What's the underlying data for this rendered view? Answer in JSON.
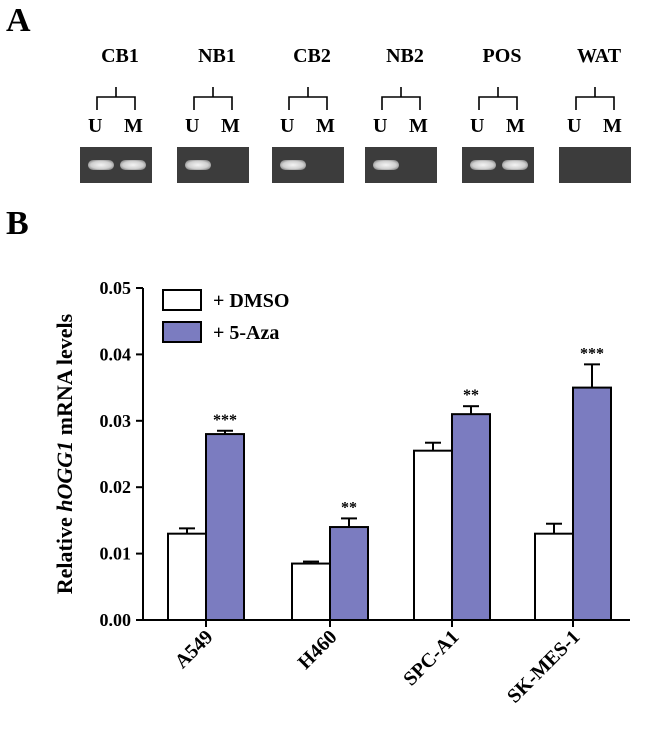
{
  "panel_a": {
    "letter": "A",
    "lane_labels": [
      "U",
      "M"
    ],
    "samples": [
      {
        "name": "CB1",
        "u_band": true,
        "m_band": true
      },
      {
        "name": "NB1",
        "u_band": true,
        "m_band": false
      },
      {
        "name": "CB2",
        "u_band": true,
        "m_band": false
      },
      {
        "name": "NB2",
        "u_band": true,
        "m_band": false
      },
      {
        "name": "POS",
        "u_band": true,
        "m_band": true
      },
      {
        "name": "WAT",
        "u_band": false,
        "m_band": false
      }
    ]
  },
  "panel_b": {
    "letter": "B"
  },
  "colors": {
    "dmso": "#ffffff",
    "aza": "#7b7cc0",
    "gel": "#3c3c3c",
    "outline": "#000000"
  },
  "chart_data": {
    "type": "bar",
    "title": "",
    "xlabel": "",
    "ylabel_prefix": "Relative ",
    "ylabel_italic": "hOGG1",
    "ylabel_suffix": " mRNA levels",
    "ylim": [
      0,
      0.05
    ],
    "yticks": [
      "0.00",
      "0.01",
      "0.02",
      "0.03",
      "0.04",
      "0.05"
    ],
    "categories": [
      "A549",
      "H460",
      "SPC-A1",
      "SK-MES-1"
    ],
    "series": [
      {
        "name": "+ DMSO",
        "values": [
          0.013,
          0.0085,
          0.0255,
          0.013
        ],
        "errors": [
          0.0008,
          0.0003,
          0.0012,
          0.0015
        ]
      },
      {
        "name": "+ 5-Aza",
        "values": [
          0.028,
          0.014,
          0.031,
          0.035
        ],
        "errors": [
          0.0005,
          0.0013,
          0.0012,
          0.0035
        ]
      }
    ],
    "significance": [
      "***",
      "**",
      "**",
      "***"
    ],
    "legend_position": "top-left"
  }
}
